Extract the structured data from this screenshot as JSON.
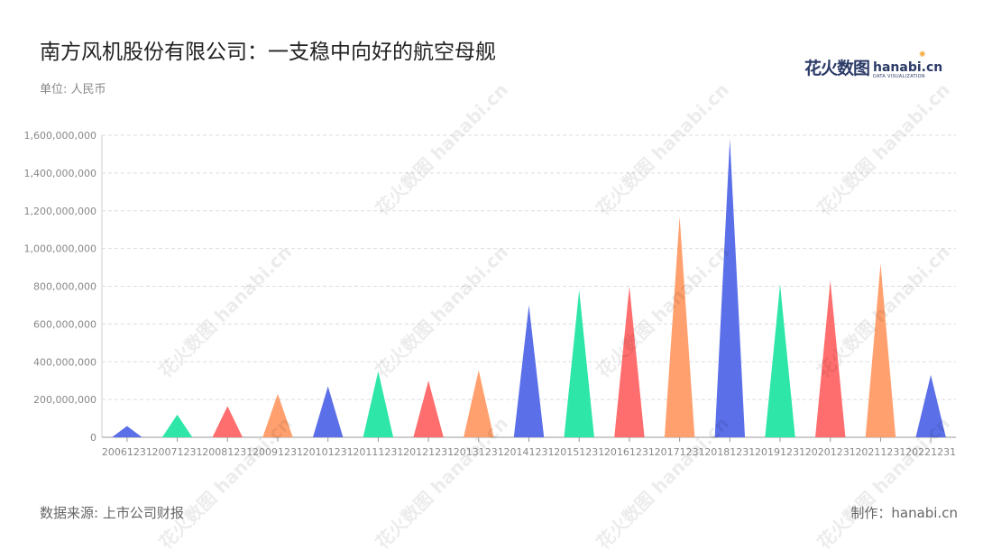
{
  "title": "南方风机股份有限公司：一支稳中向好的航空母舰",
  "unit_label": "单位: 人民币",
  "logo": {
    "cn": "花火数图",
    "en": "hanabi.cn",
    "sub": "DATA VISUALIZATION"
  },
  "source": "数据来源: 上市公司财报",
  "credit": "制作：hanabi.cn",
  "watermark_text": "花火数图 hanabi.cn",
  "palette": [
    "#5b6fe8",
    "#2ee6a8",
    "#ff6e6e",
    "#ffa06e"
  ],
  "chart_data": {
    "type": "bar",
    "title": "南方风机股份有限公司：一支稳中向好的航空母舰",
    "xlabel": "",
    "ylabel": "单位: 人民币",
    "categories": [
      "20061231",
      "20071231",
      "20081231",
      "20091231",
      "20101231",
      "20111231",
      "20121231",
      "20131231",
      "20141231",
      "20151231",
      "20161231",
      "20171231",
      "20181231",
      "20191231",
      "20201231",
      "20211231",
      "20221231"
    ],
    "values": [
      60000000,
      120000000,
      165000000,
      230000000,
      270000000,
      350000000,
      300000000,
      355000000,
      700000000,
      780000000,
      800000000,
      1170000000,
      1580000000,
      810000000,
      830000000,
      920000000,
      330000000
    ],
    "ylim": [
      0,
      1600000000
    ],
    "yticks": [
      "0",
      "200,000,000",
      "400,000,000",
      "600,000,000",
      "800,000,000",
      "1,000,000,000",
      "1,200,000,000",
      "1,400,000,000",
      "1,600,000,000"
    ],
    "grid": true,
    "bar_shape": "triangle"
  }
}
